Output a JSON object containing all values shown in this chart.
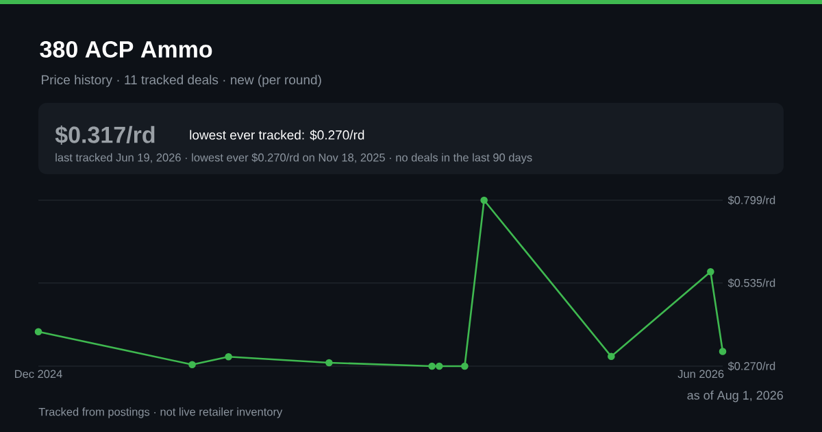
{
  "chart_data": {
    "type": "line",
    "title": "380 ACP Ammo",
    "subtitle": "Price history · 11 tracked deals · new (per round)",
    "annotations": [
      "$0.317/rd",
      "lowest ever tracked: $0.270/rd",
      "last tracked Jun 19, 2026  ·  lowest ever $0.270/rd on Nov 18, 2025  ·  no deals in the last 90 days",
      "as of Aug 1, 2026",
      "Tracked from postings · not live retailer inventory"
    ],
    "x": [
      "2024-12-01",
      "2025-04-07",
      "2025-05-07",
      "2025-07-29",
      "2025-10-22",
      "2025-10-28",
      "2025-11-18",
      "2025-12-04",
      "2026-03-19",
      "2026-06-09",
      "2026-06-19"
    ],
    "values": [
      0.38,
      0.275,
      0.3,
      0.281,
      0.27,
      0.27,
      0.27,
      0.799,
      0.301,
      0.571,
      0.317
    ],
    "color": "#3fb950",
    "marker": "circle",
    "grid": "y",
    "xlim": [
      "2024-12-01",
      "2026-06-19"
    ],
    "xticks": [
      {
        "value": "2024-12-01",
        "label": "Dec 2024"
      },
      {
        "value": "2026-06-01",
        "label": "Jun 2026"
      }
    ],
    "ylim": [
      0.27,
      0.799
    ],
    "yticks": [
      {
        "value": 0.27,
        "label": "$0.270/rd"
      },
      {
        "value": 0.535,
        "label": "$0.535/rd"
      },
      {
        "value": 0.799,
        "label": "$0.799/rd"
      }
    ]
  }
}
